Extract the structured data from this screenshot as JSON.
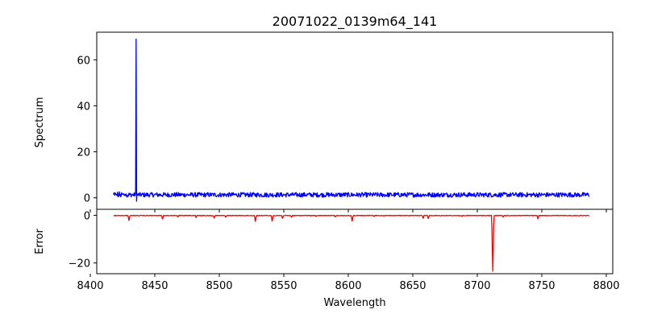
{
  "chart_data": [
    {
      "type": "line",
      "panel": "top",
      "title": "20071022_0139m64_141",
      "xlabel": "",
      "ylabel": "Spectrum",
      "xlim": [
        8405,
        8805
      ],
      "ylim": [
        -5,
        72
      ],
      "xticks": [
        8400,
        8450,
        8500,
        8550,
        8600,
        8650,
        8700,
        8750,
        8800
      ],
      "xtick_labels_visible": false,
      "yticks": [
        0,
        20,
        40,
        60
      ],
      "grid": false,
      "legend": "none",
      "series": [
        {
          "color": "#0000ff",
          "x_range": [
            8418,
            8787
          ],
          "baseline": 1.3,
          "noise_amplitude": 1.0,
          "features": [
            {
              "x": 8435.5,
              "y": 69
            },
            {
              "x": 8436.0,
              "y": -1.5
            }
          ]
        }
      ]
    },
    {
      "type": "line",
      "panel": "bottom",
      "title": "",
      "xlabel": "Wavelength",
      "ylabel": "Error",
      "xlim": [
        8405,
        8805
      ],
      "ylim": [
        -24.5,
        2.5
      ],
      "xticks": [
        8400,
        8450,
        8500,
        8550,
        8600,
        8650,
        8700,
        8750,
        8800
      ],
      "yticks": [
        0,
        -20
      ],
      "grid": false,
      "legend": "none",
      "series": [
        {
          "color": "#ff0000",
          "x_range": [
            8418,
            8787
          ],
          "baseline": 0,
          "dips": [
            {
              "x": 8430,
              "y": -2.5
            },
            {
              "x": 8456,
              "y": -2.0
            },
            {
              "x": 8468,
              "y": -0.8
            },
            {
              "x": 8482,
              "y": -1.0
            },
            {
              "x": 8496,
              "y": -1.3
            },
            {
              "x": 8505,
              "y": -1.0
            },
            {
              "x": 8528,
              "y": -3.0
            },
            {
              "x": 8541,
              "y": -3.0
            },
            {
              "x": 8549,
              "y": -1.5
            },
            {
              "x": 8556,
              "y": -1.0
            },
            {
              "x": 8575,
              "y": -0.6
            },
            {
              "x": 8590,
              "y": -0.8
            },
            {
              "x": 8603,
              "y": -3.0
            },
            {
              "x": 8620,
              "y": -0.5
            },
            {
              "x": 8658,
              "y": -1.5
            },
            {
              "x": 8662,
              "y": -1.5
            },
            {
              "x": 8688,
              "y": -0.5
            },
            {
              "x": 8712,
              "y": -23.5
            },
            {
              "x": 8720,
              "y": -0.8
            },
            {
              "x": 8747,
              "y": -1.5
            }
          ]
        }
      ]
    }
  ]
}
